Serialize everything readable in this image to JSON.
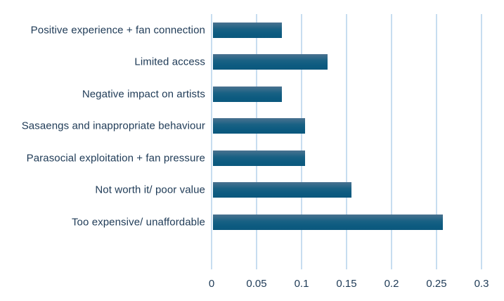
{
  "chart_data": {
    "type": "bar",
    "orientation": "horizontal",
    "title": "",
    "xlabel": "",
    "ylabel": "",
    "categories": [
      "Positive experience + fan connection",
      "Limited access",
      "Negative impact on artists",
      "Sasaengs and inappropriate behaviour",
      "Parasocial exploitation + fan pressure",
      "Not worth it/ poor value",
      "Too expensive/ unaffordable"
    ],
    "values": [
      0.077,
      0.128,
      0.077,
      0.103,
      0.103,
      0.154,
      0.256
    ],
    "xlim": [
      0,
      0.3
    ],
    "x_tick_labels": [
      "0",
      "0.05",
      "0.1",
      "0.15",
      "0.2",
      "0.25",
      "0.3"
    ],
    "x_tick_values": [
      0,
      0.05,
      0.1,
      0.15,
      0.2,
      0.25,
      0.3
    ],
    "grid": "vertical-gridlines-on",
    "legend": "none",
    "colors": {
      "bar_top": "#4a7290",
      "bar_bottom": "#0b587d",
      "gridline": "#c7ddf0",
      "text": "#1e3a56",
      "background": "#ffffff"
    }
  }
}
